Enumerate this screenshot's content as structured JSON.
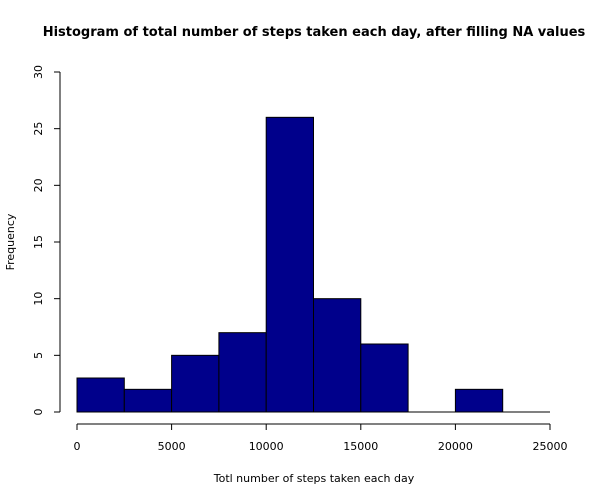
{
  "chart_data": {
    "type": "bar",
    "title": "Histogram of total number of steps taken each day, after filling NA values",
    "xlabel": "Totl number of steps taken each day",
    "ylabel": "Frequency",
    "bins": [
      {
        "start": 0,
        "end": 2500,
        "count": 3
      },
      {
        "start": 2500,
        "end": 5000,
        "count": 2
      },
      {
        "start": 5000,
        "end": 7500,
        "count": 5
      },
      {
        "start": 7500,
        "end": 10000,
        "count": 7
      },
      {
        "start": 10000,
        "end": 12500,
        "count": 26
      },
      {
        "start": 12500,
        "end": 15000,
        "count": 10
      },
      {
        "start": 15000,
        "end": 17500,
        "count": 6
      },
      {
        "start": 17500,
        "end": 20000,
        "count": 0
      },
      {
        "start": 20000,
        "end": 22500,
        "count": 2
      },
      {
        "start": 22500,
        "end": 25000,
        "count": 0
      }
    ],
    "xlim": [
      0,
      25000
    ],
    "ylim": [
      0,
      30
    ],
    "xticks": [
      "0",
      "5000",
      "10000",
      "15000",
      "20000",
      "25000"
    ],
    "yticks": [
      "0",
      "5",
      "10",
      "15",
      "20",
      "25",
      "30"
    ],
    "bar_color": "#00008B",
    "bar_edge_color": "#000000",
    "grid": false
  }
}
